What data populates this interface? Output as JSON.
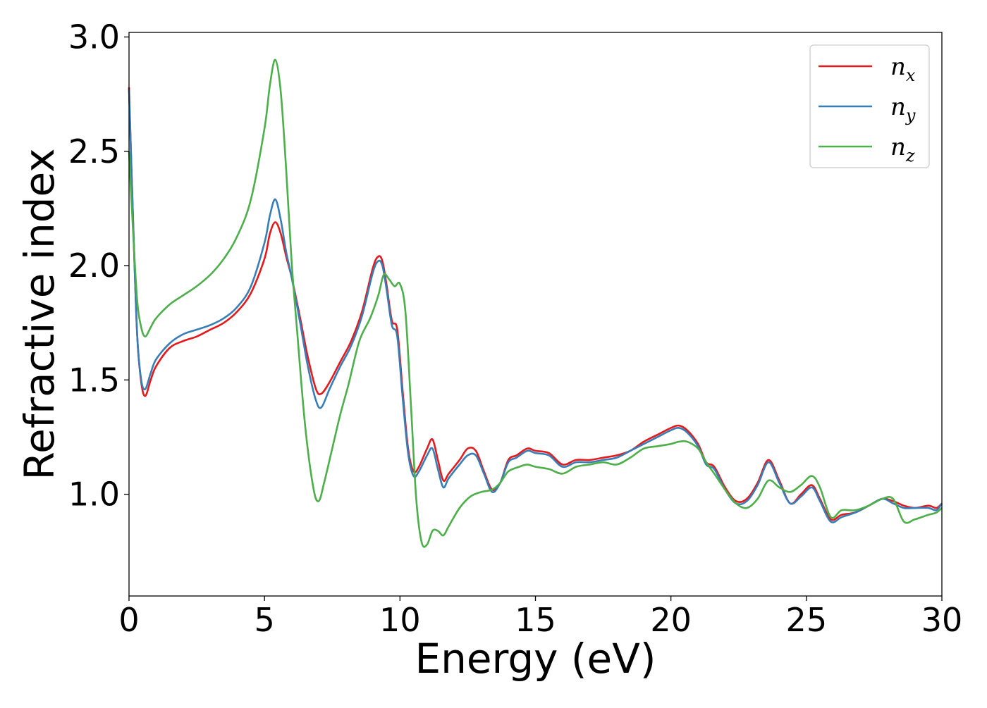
{
  "chart_data": {
    "type": "line",
    "xlabel": "Energy (eV)",
    "ylabel": "Refractive index",
    "xlim": [
      0,
      30
    ],
    "ylim": [
      0.555,
      3.02
    ],
    "xticks": [
      0,
      5,
      10,
      15,
      20,
      25,
      30
    ],
    "xtick_labels": [
      "0",
      "5",
      "10",
      "15",
      "20",
      "25",
      "30"
    ],
    "yticks": [
      1.0,
      1.5,
      2.0,
      2.5,
      3.0
    ],
    "ytick_labels": [
      "1.0",
      "1.5",
      "2.0",
      "2.5",
      "3.0"
    ],
    "grid": false,
    "legend_position": "top-right",
    "series": [
      {
        "name": "n_x",
        "label_base": "n",
        "label_sub": "x",
        "color": "#e41a1c",
        "x": [
          0,
          0.15,
          0.3,
          0.45,
          0.6,
          0.8,
          1.0,
          1.5,
          2.0,
          2.5,
          3.0,
          3.5,
          4.0,
          4.5,
          5.0,
          5.2,
          5.4,
          5.6,
          5.8,
          6.0,
          6.3,
          6.6,
          6.9,
          7.1,
          7.4,
          7.8,
          8.2,
          8.6,
          9.0,
          9.2,
          9.35,
          9.5,
          9.7,
          9.9,
          10.1,
          10.3,
          10.5,
          10.7,
          11.0,
          11.2,
          11.4,
          11.6,
          11.8,
          12.2,
          12.5,
          12.8,
          13.1,
          13.4,
          13.7,
          14.0,
          14.3,
          14.7,
          15.0,
          15.5,
          16.0,
          16.5,
          17.0,
          17.5,
          18.0,
          18.5,
          19.0,
          19.5,
          20.0,
          20.3,
          20.6,
          21.0,
          21.3,
          21.6,
          22.0,
          22.4,
          22.8,
          23.2,
          23.6,
          24.0,
          24.4,
          24.8,
          25.2,
          25.5,
          25.9,
          26.3,
          26.8,
          27.3,
          27.8,
          28.2,
          28.6,
          29.0,
          29.5,
          29.8,
          30.0
        ],
        "y": [
          2.78,
          2.2,
          1.7,
          1.49,
          1.43,
          1.5,
          1.56,
          1.64,
          1.67,
          1.69,
          1.72,
          1.75,
          1.8,
          1.88,
          2.03,
          2.14,
          2.19,
          2.14,
          2.04,
          1.95,
          1.78,
          1.6,
          1.46,
          1.44,
          1.49,
          1.58,
          1.67,
          1.8,
          1.99,
          2.04,
          2.02,
          1.92,
          1.76,
          1.72,
          1.45,
          1.2,
          1.1,
          1.12,
          1.2,
          1.24,
          1.15,
          1.06,
          1.09,
          1.15,
          1.2,
          1.19,
          1.1,
          1.02,
          1.05,
          1.15,
          1.17,
          1.2,
          1.19,
          1.18,
          1.13,
          1.15,
          1.15,
          1.16,
          1.17,
          1.19,
          1.23,
          1.26,
          1.29,
          1.3,
          1.28,
          1.22,
          1.14,
          1.12,
          1.03,
          0.97,
          0.98,
          1.05,
          1.15,
          1.06,
          0.96,
          1.0,
          1.04,
          0.98,
          0.89,
          0.91,
          0.92,
          0.95,
          0.98,
          0.97,
          0.95,
          0.94,
          0.95,
          0.94,
          0.96
        ]
      },
      {
        "name": "n_y",
        "label_base": "n",
        "label_sub": "y",
        "color": "#377eb8",
        "x": [
          0,
          0.15,
          0.3,
          0.45,
          0.6,
          0.8,
          1.0,
          1.5,
          2.0,
          2.5,
          3.0,
          3.5,
          4.0,
          4.5,
          5.0,
          5.2,
          5.4,
          5.6,
          5.8,
          6.0,
          6.3,
          6.6,
          6.9,
          7.1,
          7.4,
          7.8,
          8.2,
          8.6,
          9.0,
          9.2,
          9.35,
          9.5,
          9.7,
          9.9,
          10.1,
          10.3,
          10.5,
          10.7,
          11.0,
          11.2,
          11.4,
          11.6,
          11.8,
          12.2,
          12.5,
          12.8,
          13.1,
          13.4,
          13.7,
          14.0,
          14.3,
          14.7,
          15.0,
          15.5,
          16.0,
          16.5,
          17.0,
          17.5,
          18.0,
          18.5,
          19.0,
          19.5,
          20.0,
          20.3,
          20.6,
          21.0,
          21.3,
          21.6,
          22.0,
          22.4,
          22.8,
          23.2,
          23.6,
          24.0,
          24.4,
          24.8,
          25.2,
          25.5,
          25.9,
          26.3,
          26.8,
          27.3,
          27.8,
          28.2,
          28.6,
          29.0,
          29.5,
          29.8,
          30.0
        ],
        "y": [
          2.77,
          2.2,
          1.7,
          1.5,
          1.46,
          1.53,
          1.59,
          1.66,
          1.7,
          1.72,
          1.74,
          1.77,
          1.82,
          1.91,
          2.1,
          2.22,
          2.29,
          2.2,
          2.06,
          1.95,
          1.76,
          1.56,
          1.41,
          1.38,
          1.46,
          1.56,
          1.65,
          1.78,
          1.97,
          2.02,
          2.0,
          1.9,
          1.74,
          1.69,
          1.42,
          1.18,
          1.08,
          1.1,
          1.17,
          1.2,
          1.11,
          1.03,
          1.07,
          1.13,
          1.17,
          1.17,
          1.09,
          1.01,
          1.05,
          1.14,
          1.16,
          1.19,
          1.18,
          1.17,
          1.12,
          1.14,
          1.14,
          1.15,
          1.16,
          1.19,
          1.22,
          1.25,
          1.28,
          1.29,
          1.27,
          1.21,
          1.13,
          1.11,
          1.02,
          0.96,
          0.97,
          1.04,
          1.14,
          1.05,
          0.96,
          0.99,
          1.03,
          0.97,
          0.88,
          0.9,
          0.92,
          0.95,
          0.98,
          0.96,
          0.94,
          0.94,
          0.94,
          0.93,
          0.96
        ]
      },
      {
        "name": "n_z",
        "label_base": "n",
        "label_sub": "z",
        "color": "#4daf4a",
        "x": [
          0,
          0.15,
          0.3,
          0.45,
          0.6,
          0.8,
          1.0,
          1.5,
          2.0,
          2.5,
          3.0,
          3.5,
          4.0,
          4.5,
          5.0,
          5.2,
          5.4,
          5.6,
          5.8,
          6.0,
          6.2,
          6.5,
          6.8,
          7.0,
          7.2,
          7.5,
          7.8,
          8.1,
          8.5,
          8.9,
          9.2,
          9.4,
          9.6,
          9.8,
          10.0,
          10.2,
          10.4,
          10.6,
          10.8,
          11.0,
          11.2,
          11.4,
          11.6,
          11.8,
          12.2,
          12.6,
          13.0,
          13.4,
          13.7,
          14.0,
          14.4,
          14.7,
          15.0,
          15.5,
          16.0,
          16.5,
          17.0,
          17.5,
          18.0,
          18.5,
          19.0,
          19.5,
          20.0,
          20.3,
          20.6,
          21.0,
          21.3,
          21.6,
          22.0,
          22.4,
          22.8,
          23.2,
          23.6,
          24.0,
          24.4,
          24.8,
          25.2,
          25.5,
          25.9,
          26.3,
          26.8,
          27.3,
          27.8,
          28.2,
          28.6,
          29.0,
          29.5,
          29.8,
          30.0
        ],
        "y": [
          2.5,
          2.15,
          1.85,
          1.73,
          1.69,
          1.73,
          1.77,
          1.83,
          1.87,
          1.91,
          1.96,
          2.03,
          2.13,
          2.29,
          2.6,
          2.79,
          2.9,
          2.76,
          2.42,
          2.02,
          1.72,
          1.3,
          1.03,
          0.97,
          1.05,
          1.2,
          1.35,
          1.48,
          1.67,
          1.77,
          1.87,
          1.96,
          1.94,
          1.91,
          1.92,
          1.8,
          1.4,
          0.98,
          0.79,
          0.78,
          0.84,
          0.84,
          0.82,
          0.86,
          0.94,
          0.99,
          1.01,
          1.02,
          1.05,
          1.1,
          1.12,
          1.13,
          1.12,
          1.11,
          1.09,
          1.12,
          1.13,
          1.14,
          1.13,
          1.16,
          1.2,
          1.21,
          1.22,
          1.23,
          1.23,
          1.2,
          1.14,
          1.09,
          1.02,
          0.96,
          0.94,
          0.98,
          1.06,
          1.03,
          1.01,
          1.04,
          1.08,
          1.03,
          0.9,
          0.93,
          0.93,
          0.95,
          0.98,
          0.98,
          0.88,
          0.89,
          0.91,
          0.92,
          0.94
        ]
      }
    ]
  }
}
